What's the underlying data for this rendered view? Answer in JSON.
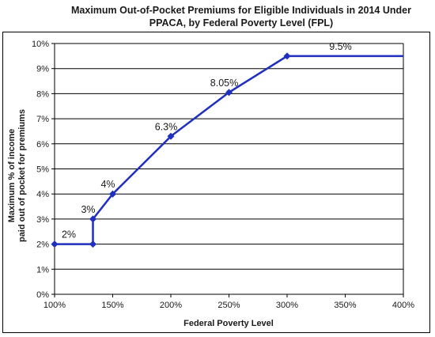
{
  "chart_data": {
    "type": "line",
    "title_line1": "Maximum Out-of-Pocket Premiums for Eligible Individuals in 2014 Under",
    "title_line2": "PPACA, by Federal Poverty Level (FPL)",
    "xlabel": "Federal Poverty Level",
    "ylabel_line1": "Maximum % of income",
    "ylabel_line2": "paid out of pocket for premiums",
    "xlim": [
      100,
      400
    ],
    "ylim": [
      0,
      10
    ],
    "x_ticks": [
      100,
      150,
      200,
      250,
      300,
      350,
      400
    ],
    "x_tick_labels": [
      "100%",
      "150%",
      "200%",
      "250%",
      "300%",
      "350%",
      "400%"
    ],
    "y_ticks": [
      0,
      1,
      2,
      3,
      4,
      5,
      6,
      7,
      8,
      9,
      10
    ],
    "y_tick_labels": [
      "0%",
      "1%",
      "2%",
      "3%",
      "4%",
      "5%",
      "6%",
      "7%",
      "8%",
      "9%",
      "10%"
    ],
    "grid": true,
    "series": [
      {
        "color": "#1f2fbf",
        "points": [
          {
            "x": 100,
            "y": 2
          },
          {
            "x": 133,
            "y": 2
          },
          {
            "x": 133,
            "y": 3
          },
          {
            "x": 150,
            "y": 4
          },
          {
            "x": 200,
            "y": 6.3
          },
          {
            "x": 250,
            "y": 8.05
          },
          {
            "x": 300,
            "y": 9.5
          },
          {
            "x": 400,
            "y": 9.5
          }
        ],
        "markers": [
          {
            "x": 100,
            "y": 2
          },
          {
            "x": 133,
            "y": 2
          },
          {
            "x": 133,
            "y": 3
          },
          {
            "x": 150,
            "y": 4
          },
          {
            "x": 200,
            "y": 6.3
          },
          {
            "x": 250,
            "y": 8.05
          },
          {
            "x": 300,
            "y": 9.5
          }
        ]
      }
    ],
    "annotations": [
      {
        "text": "2%",
        "x": 100,
        "y": 2
      },
      {
        "text": "3%",
        "x": 133,
        "y": 3
      },
      {
        "text": "4%",
        "x": 150,
        "y": 4
      },
      {
        "text": "6.3%",
        "x": 200,
        "y": 6.3
      },
      {
        "text": "8.05%",
        "x": 250,
        "y": 8.05
      },
      {
        "text": "9.5%",
        "x": 350,
        "y": 9.5
      }
    ]
  }
}
